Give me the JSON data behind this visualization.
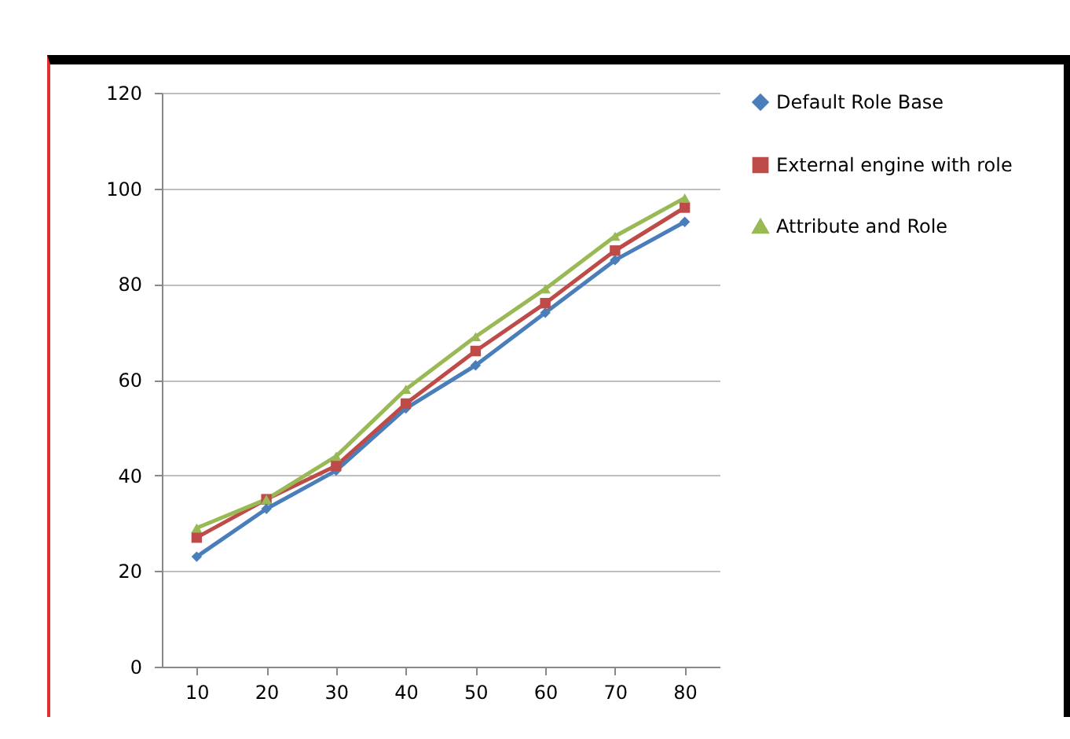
{
  "chart_data": {
    "type": "line",
    "categories": [
      "10",
      "20",
      "30",
      "40",
      "50",
      "60",
      "70",
      "80"
    ],
    "series": [
      {
        "name": "Default Role Base",
        "color": "#4a7ebb",
        "marker": "diamond",
        "values": [
          23,
          33,
          41,
          54,
          63,
          74,
          85,
          93
        ]
      },
      {
        "name": "External engine with role",
        "color": "#be4b48",
        "marker": "square",
        "values": [
          27,
          35,
          42,
          55,
          66,
          76,
          87,
          96
        ]
      },
      {
        "name": "Attribute and Role",
        "color": "#98b954",
        "marker": "triangle",
        "values": [
          29,
          35,
          44,
          58,
          69,
          79,
          90,
          98
        ]
      }
    ],
    "ylim": [
      0,
      120
    ],
    "yticks": [
      0,
      20,
      40,
      60,
      80,
      100,
      120
    ],
    "grid": "y",
    "legend": "right",
    "line_style": "solid"
  }
}
